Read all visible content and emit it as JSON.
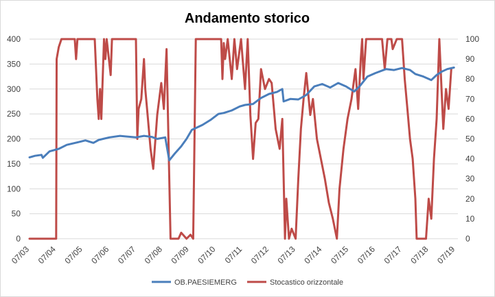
{
  "chart_data": {
    "type": "line",
    "title": "Andamento storico",
    "x": [
      "07/03",
      "07/04",
      "07/05",
      "07/06",
      "07/07",
      "07/08",
      "07/09",
      "07/10",
      "07/11",
      "07/12",
      "07/13",
      "07/14",
      "07/15",
      "07/16",
      "07/17",
      "07/18",
      "07/19"
    ],
    "y_left": {
      "min": 0,
      "max": 400,
      "ticks": [
        0,
        50,
        100,
        150,
        200,
        250,
        300,
        350,
        400
      ]
    },
    "y_right": {
      "min": 0,
      "max": 100,
      "ticks": [
        0,
        10,
        20,
        30,
        40,
        50,
        60,
        70,
        80,
        90,
        100
      ]
    },
    "grid": true,
    "legend_position": "bottom",
    "series": [
      {
        "name": "OB.PAESIEMERG",
        "axis": "left",
        "color": "#4a7ebb",
        "points": [
          [
            2003.5,
            163
          ],
          [
            2003.7,
            166
          ],
          [
            2003.95,
            168
          ],
          [
            2004.0,
            162
          ],
          [
            2004.25,
            175
          ],
          [
            2004.6,
            180
          ],
          [
            2004.9,
            188
          ],
          [
            2005.3,
            193
          ],
          [
            2005.6,
            197
          ],
          [
            2005.9,
            192
          ],
          [
            2006.1,
            198
          ],
          [
            2006.5,
            203
          ],
          [
            2006.9,
            206
          ],
          [
            2007.1,
            205
          ],
          [
            2007.5,
            203
          ],
          [
            2007.8,
            206
          ],
          [
            2008.1,
            204
          ],
          [
            2008.3,
            200
          ],
          [
            2008.6,
            203
          ],
          [
            2008.75,
            157
          ],
          [
            2008.95,
            170
          ],
          [
            2009.2,
            185
          ],
          [
            2009.4,
            200
          ],
          [
            2009.6,
            218
          ],
          [
            2010.0,
            228
          ],
          [
            2010.3,
            238
          ],
          [
            2010.6,
            250
          ],
          [
            2010.8,
            252
          ],
          [
            2011.1,
            257
          ],
          [
            2011.4,
            265
          ],
          [
            2011.6,
            268
          ],
          [
            2011.9,
            270
          ],
          [
            2012.2,
            282
          ],
          [
            2012.5,
            290
          ],
          [
            2012.8,
            294
          ],
          [
            2013.0,
            300
          ],
          [
            2013.05,
            275
          ],
          [
            2013.3,
            280
          ],
          [
            2013.6,
            279
          ],
          [
            2013.9,
            288
          ],
          [
            2014.2,
            305
          ],
          [
            2014.5,
            310
          ],
          [
            2014.8,
            303
          ],
          [
            2015.1,
            312
          ],
          [
            2015.4,
            305
          ],
          [
            2015.7,
            295
          ],
          [
            2015.9,
            305
          ],
          [
            2016.2,
            325
          ],
          [
            2016.5,
            332
          ],
          [
            2016.9,
            340
          ],
          [
            2017.2,
            338
          ],
          [
            2017.5,
            342
          ],
          [
            2017.8,
            338
          ],
          [
            2018.0,
            330
          ],
          [
            2018.3,
            325
          ],
          [
            2018.6,
            318
          ],
          [
            2018.8,
            328
          ],
          [
            2019.0,
            335
          ],
          [
            2019.2,
            340
          ],
          [
            2019.45,
            343
          ]
        ]
      },
      {
        "name": "Stocastico orizzontale",
        "axis": "right",
        "color": "#be4b48",
        "points": [
          [
            2003.5,
            0
          ],
          [
            2004.5,
            0
          ],
          [
            2004.52,
            90
          ],
          [
            2004.6,
            96
          ],
          [
            2004.7,
            100
          ],
          [
            2005.2,
            100
          ],
          [
            2005.25,
            90
          ],
          [
            2005.3,
            100
          ],
          [
            2005.95,
            100
          ],
          [
            2006.05,
            70
          ],
          [
            2006.1,
            60
          ],
          [
            2006.15,
            75
          ],
          [
            2006.2,
            60
          ],
          [
            2006.3,
            100
          ],
          [
            2006.35,
            90
          ],
          [
            2006.4,
            100
          ],
          [
            2006.55,
            82
          ],
          [
            2006.6,
            100
          ],
          [
            2007.5,
            100
          ],
          [
            2007.55,
            50
          ],
          [
            2007.6,
            65
          ],
          [
            2007.7,
            70
          ],
          [
            2007.8,
            90
          ],
          [
            2007.85,
            75
          ],
          [
            2007.95,
            60
          ],
          [
            2008.05,
            45
          ],
          [
            2008.15,
            35
          ],
          [
            2008.3,
            62
          ],
          [
            2008.45,
            78
          ],
          [
            2008.55,
            65
          ],
          [
            2008.65,
            95
          ],
          [
            2008.8,
            0
          ],
          [
            2009.1,
            0
          ],
          [
            2009.2,
            3
          ],
          [
            2009.4,
            0
          ],
          [
            2009.55,
            2
          ],
          [
            2009.65,
            0
          ],
          [
            2009.75,
            100
          ],
          [
            2010.7,
            100
          ],
          [
            2010.75,
            80
          ],
          [
            2010.8,
            98
          ],
          [
            2010.85,
            90
          ],
          [
            2010.95,
            100
          ],
          [
            2011.1,
            80
          ],
          [
            2011.2,
            100
          ],
          [
            2011.3,
            85
          ],
          [
            2011.45,
            100
          ],
          [
            2011.6,
            75
          ],
          [
            2011.7,
            100
          ],
          [
            2011.8,
            62
          ],
          [
            2011.9,
            40
          ],
          [
            2012.0,
            58
          ],
          [
            2012.1,
            60
          ],
          [
            2012.2,
            85
          ],
          [
            2012.35,
            75
          ],
          [
            2012.5,
            80
          ],
          [
            2012.6,
            78
          ],
          [
            2012.75,
            55
          ],
          [
            2012.9,
            45
          ],
          [
            2013.0,
            60
          ],
          [
            2013.1,
            0
          ],
          [
            2013.15,
            20
          ],
          [
            2013.25,
            0
          ],
          [
            2013.35,
            5
          ],
          [
            2013.5,
            0
          ],
          [
            2013.6,
            30
          ],
          [
            2013.7,
            55
          ],
          [
            2013.8,
            70
          ],
          [
            2013.9,
            83
          ],
          [
            2014.05,
            62
          ],
          [
            2014.15,
            70
          ],
          [
            2014.3,
            50
          ],
          [
            2014.45,
            40
          ],
          [
            2014.6,
            30
          ],
          [
            2014.75,
            18
          ],
          [
            2014.9,
            10
          ],
          [
            2015.05,
            0
          ],
          [
            2015.15,
            25
          ],
          [
            2015.3,
            45
          ],
          [
            2015.45,
            60
          ],
          [
            2015.6,
            70
          ],
          [
            2015.75,
            85
          ],
          [
            2015.85,
            65
          ],
          [
            2015.95,
            90
          ],
          [
            2016.0,
            100
          ],
          [
            2016.05,
            80
          ],
          [
            2016.15,
            100
          ],
          [
            2016.75,
            100
          ],
          [
            2016.85,
            85
          ],
          [
            2016.95,
            100
          ],
          [
            2017.1,
            100
          ],
          [
            2017.15,
            95
          ],
          [
            2017.3,
            100
          ],
          [
            2017.5,
            100
          ],
          [
            2017.6,
            80
          ],
          [
            2017.7,
            65
          ],
          [
            2017.8,
            50
          ],
          [
            2017.9,
            40
          ],
          [
            2018.0,
            20
          ],
          [
            2018.05,
            0
          ],
          [
            2018.4,
            0
          ],
          [
            2018.5,
            20
          ],
          [
            2018.6,
            10
          ],
          [
            2018.7,
            40
          ],
          [
            2018.8,
            60
          ],
          [
            2018.9,
            100
          ],
          [
            2019.05,
            55
          ],
          [
            2019.15,
            75
          ],
          [
            2019.25,
            65
          ],
          [
            2019.35,
            85
          ]
        ]
      }
    ]
  }
}
